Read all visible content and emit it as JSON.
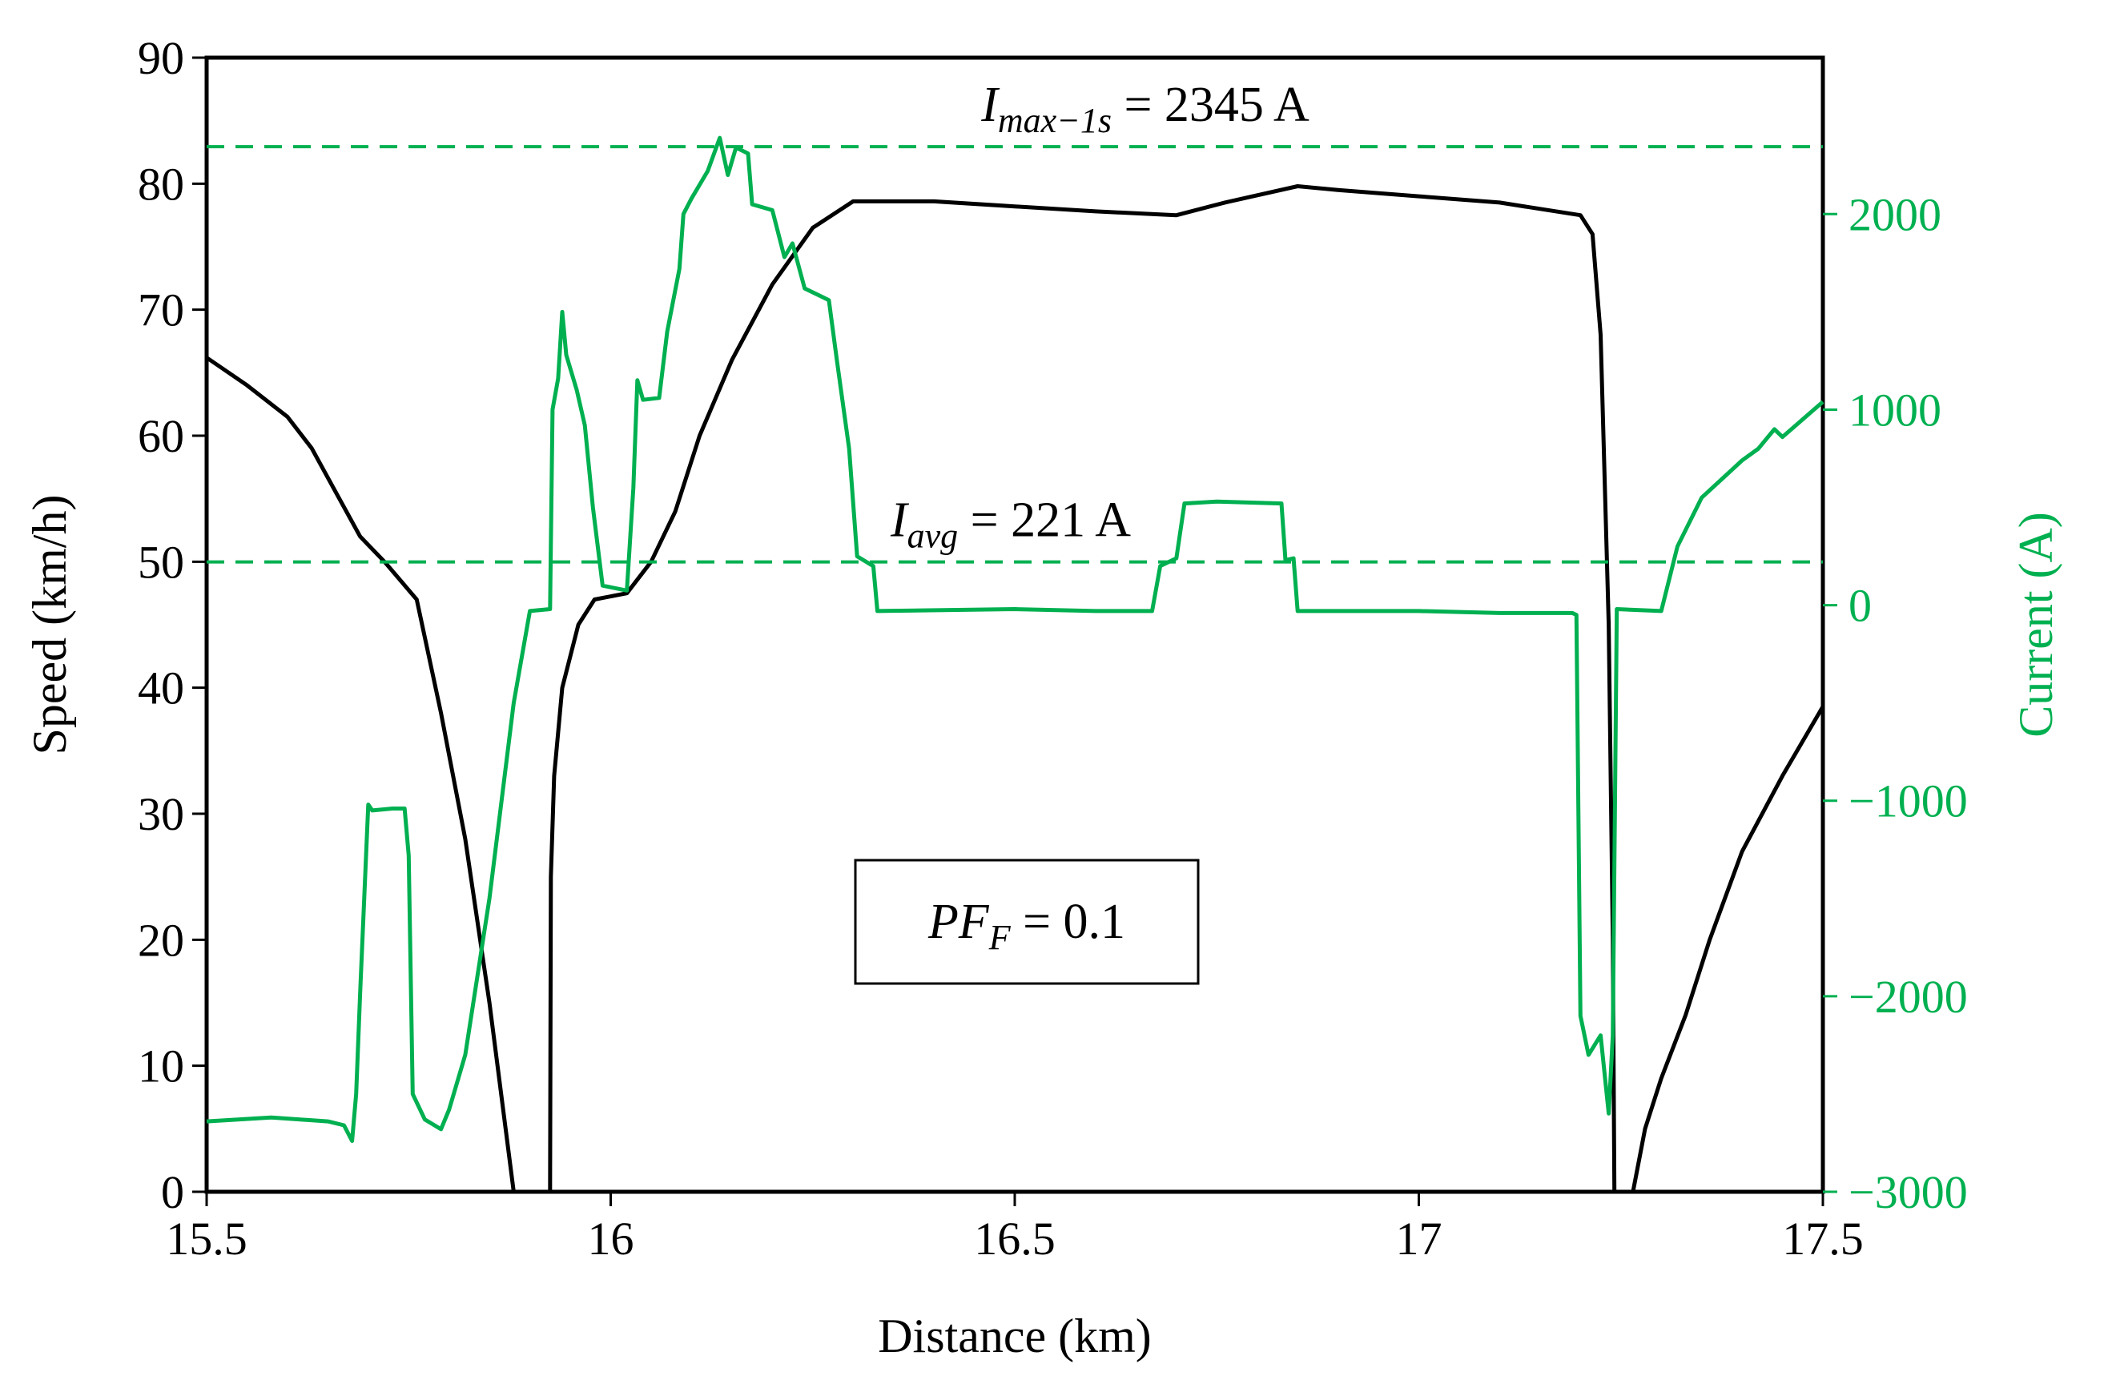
{
  "chart_data": {
    "type": "line",
    "xlabel": "Distance (km)",
    "ylabel_left": "Speed (km/h)",
    "ylabel_right": "Current (A)",
    "xlim": [
      15.5,
      17.5
    ],
    "ylim_left": [
      0,
      90
    ],
    "ylim_right": [
      -3000,
      2800
    ],
    "x_ticks": [
      "15.5",
      "16",
      "16.5",
      "17",
      "17.5"
    ],
    "y_ticks_left": [
      "0",
      "10",
      "20",
      "30",
      "40",
      "50",
      "60",
      "70",
      "80",
      "90"
    ],
    "y_ticks_right": [
      "−3000",
      "−2000",
      "−1000",
      "0",
      "1000",
      "2000"
    ],
    "grid": false,
    "colors": {
      "speed": "#000000",
      "current": "#00b050"
    },
    "annotations": {
      "imax": {
        "symbol": "I",
        "subscript": "max−1s",
        "rest": " = 2345 A",
        "value": 2345
      },
      "iavg": {
        "symbol": "I",
        "subscript": "avg",
        "rest": " = 221 A",
        "value": 221
      },
      "pf": {
        "symbol": "PF",
        "subscript": "F",
        "rest": " = 0.1"
      }
    },
    "series": [
      {
        "axis": "left",
        "points": [
          [
            15.5,
            66.2
          ],
          [
            15.55,
            64
          ],
          [
            15.6,
            61.5
          ],
          [
            15.63,
            59
          ],
          [
            15.66,
            55.5
          ],
          [
            15.69,
            52
          ],
          [
            15.72,
            50
          ],
          [
            15.76,
            47
          ],
          [
            15.79,
            38
          ],
          [
            15.82,
            28
          ],
          [
            15.85,
            15
          ],
          [
            15.87,
            5
          ],
          [
            15.88,
            0
          ],
          [
            15.925,
            0
          ],
          [
            15.926,
            25
          ],
          [
            15.93,
            33
          ],
          [
            15.94,
            40
          ],
          [
            15.96,
            45
          ],
          [
            15.98,
            47
          ],
          [
            16.02,
            47.5
          ],
          [
            16.05,
            50
          ],
          [
            16.08,
            54
          ],
          [
            16.11,
            60
          ],
          [
            16.15,
            66
          ],
          [
            16.2,
            72
          ],
          [
            16.25,
            76.5
          ],
          [
            16.3,
            78.6
          ],
          [
            16.4,
            78.6
          ],
          [
            16.5,
            78.2
          ],
          [
            16.6,
            77.8
          ],
          [
            16.7,
            77.5
          ],
          [
            16.76,
            78.5
          ],
          [
            16.85,
            79.8
          ],
          [
            16.9,
            79.5
          ],
          [
            17.0,
            79
          ],
          [
            17.1,
            78.5
          ],
          [
            17.2,
            77.5
          ],
          [
            17.215,
            76
          ],
          [
            17.225,
            68
          ],
          [
            17.235,
            45
          ],
          [
            17.24,
            20
          ],
          [
            17.242,
            0
          ],
          [
            17.265,
            0
          ],
          [
            17.28,
            5
          ],
          [
            17.3,
            9
          ],
          [
            17.33,
            14
          ],
          [
            17.36,
            20
          ],
          [
            17.4,
            27
          ],
          [
            17.45,
            33
          ],
          [
            17.5,
            38.5
          ]
        ]
      },
      {
        "axis": "right",
        "points": [
          [
            15.5,
            -2640
          ],
          [
            15.58,
            -2620
          ],
          [
            15.65,
            -2640
          ],
          [
            15.67,
            -2660
          ],
          [
            15.68,
            -2740
          ],
          [
            15.685,
            -2500
          ],
          [
            15.69,
            -1980
          ],
          [
            15.7,
            -1020
          ],
          [
            15.705,
            -1050
          ],
          [
            15.73,
            -1040
          ],
          [
            15.745,
            -1040
          ],
          [
            15.75,
            -1280
          ],
          [
            15.755,
            -2500
          ],
          [
            15.77,
            -2630
          ],
          [
            15.79,
            -2680
          ],
          [
            15.8,
            -2580
          ],
          [
            15.82,
            -2300
          ],
          [
            15.85,
            -1500
          ],
          [
            15.88,
            -500
          ],
          [
            15.9,
            -30
          ],
          [
            15.925,
            -20
          ],
          [
            15.928,
            1000
          ],
          [
            15.935,
            1160
          ],
          [
            15.94,
            1500
          ],
          [
            15.945,
            1280
          ],
          [
            15.958,
            1100
          ],
          [
            15.968,
            920
          ],
          [
            15.978,
            500
          ],
          [
            15.99,
            100
          ],
          [
            16.02,
            75
          ],
          [
            16.028,
            600
          ],
          [
            16.033,
            1150
          ],
          [
            16.04,
            1050
          ],
          [
            16.06,
            1060
          ],
          [
            16.07,
            1400
          ],
          [
            16.085,
            1720
          ],
          [
            16.09,
            2000
          ],
          [
            16.1,
            2080
          ],
          [
            16.12,
            2220
          ],
          [
            16.135,
            2390
          ],
          [
            16.145,
            2200
          ],
          [
            16.155,
            2340
          ],
          [
            16.17,
            2310
          ],
          [
            16.175,
            2050
          ],
          [
            16.2,
            2020
          ],
          [
            16.215,
            1780
          ],
          [
            16.225,
            1850
          ],
          [
            16.24,
            1620
          ],
          [
            16.27,
            1560
          ],
          [
            16.28,
            1250
          ],
          [
            16.295,
            800
          ],
          [
            16.305,
            250
          ],
          [
            16.325,
            200
          ],
          [
            16.33,
            -30
          ],
          [
            16.5,
            -20
          ],
          [
            16.6,
            -30
          ],
          [
            16.67,
            -30
          ],
          [
            16.68,
            200
          ],
          [
            16.7,
            240
          ],
          [
            16.71,
            520
          ],
          [
            16.75,
            530
          ],
          [
            16.83,
            520
          ],
          [
            16.835,
            230
          ],
          [
            16.845,
            240
          ],
          [
            16.85,
            -30
          ],
          [
            17.0,
            -30
          ],
          [
            17.1,
            -40
          ],
          [
            17.19,
            -40
          ],
          [
            17.195,
            -50
          ],
          [
            17.2,
            -2100
          ],
          [
            17.21,
            -2300
          ],
          [
            17.225,
            -2200
          ],
          [
            17.235,
            -2600
          ],
          [
            17.24,
            -2200
          ],
          [
            17.245,
            -20
          ],
          [
            17.3,
            -30
          ],
          [
            17.32,
            300
          ],
          [
            17.35,
            550
          ],
          [
            17.4,
            740
          ],
          [
            17.42,
            800
          ],
          [
            17.44,
            900
          ],
          [
            17.45,
            860
          ],
          [
            17.5,
            1040
          ]
        ]
      }
    ]
  }
}
